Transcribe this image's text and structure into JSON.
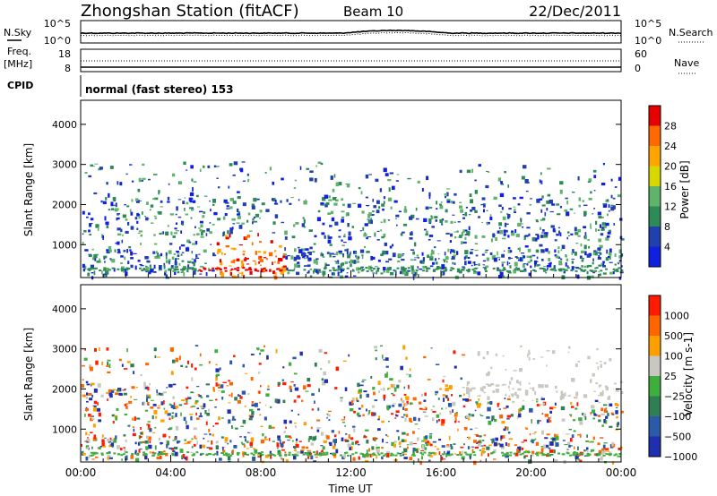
{
  "header": {
    "station": "Zhongshan Station (fitACF)",
    "beam": "Beam 10",
    "date": "22/Dec/2011"
  },
  "nsky_panel": {
    "left_label": "N.Sky",
    "left_ticks": [
      "10^5",
      "10^0"
    ],
    "right_ticks": [
      "10^5",
      "10^0"
    ],
    "right_label": "N.Search"
  },
  "freq_panel": {
    "left_label_1": "Freq.",
    "left_label_2": "[MHz]",
    "left_ticks": [
      "18",
      "8"
    ],
    "right_ticks": [
      "60",
      "0"
    ],
    "right_label": "Nave"
  },
  "cpid_panel": {
    "label": "CPID",
    "mode_text": "normal (fast stereo) 153"
  },
  "colors": {
    "power_scale": [
      "#1020e0",
      "#2040b0",
      "#2e8b57",
      "#5fb36b",
      "#d8d800",
      "#ffa500",
      "#ff6a00",
      "#e60000"
    ],
    "velocity_scale": [
      "#1f2fb0",
      "#2a5aa8",
      "#2e7f52",
      "#3fae3f",
      "#c8c8c0",
      "#ffa000",
      "#ff6600",
      "#ff1a00"
    ]
  },
  "chart_data": [
    {
      "type": "heatmap",
      "name": "power",
      "xlabel": "",
      "ylabel": "Slant Range [km]",
      "y_ticks": [
        "1000",
        "2000",
        "3000",
        "4000"
      ],
      "y_range": [
        180,
        4600
      ],
      "x_range": [
        "00:00",
        "24:00"
      ],
      "colorbar_label": "Power [dB]",
      "colorbar_ticks": [
        "28",
        "24",
        "20",
        "16",
        "12",
        "8",
        "4"
      ],
      "colorbar_range": [
        0,
        32
      ]
    },
    {
      "type": "heatmap",
      "name": "velocity",
      "xlabel": "Time UT",
      "ylabel": "Slant Range [km]",
      "y_ticks": [
        "1000",
        "2000",
        "3000",
        "4000"
      ],
      "y_range": [
        180,
        4600
      ],
      "x_ticks": [
        "00:00",
        "04:00",
        "08:00",
        "12:00",
        "16:00",
        "20:00",
        "00:00"
      ],
      "colorbar_label": "Velocity [m s-1]",
      "colorbar_ticks": [
        "1000",
        "500",
        "100",
        "25",
        "−25",
        "−100",
        "−500",
        "−1000"
      ]
    }
  ]
}
